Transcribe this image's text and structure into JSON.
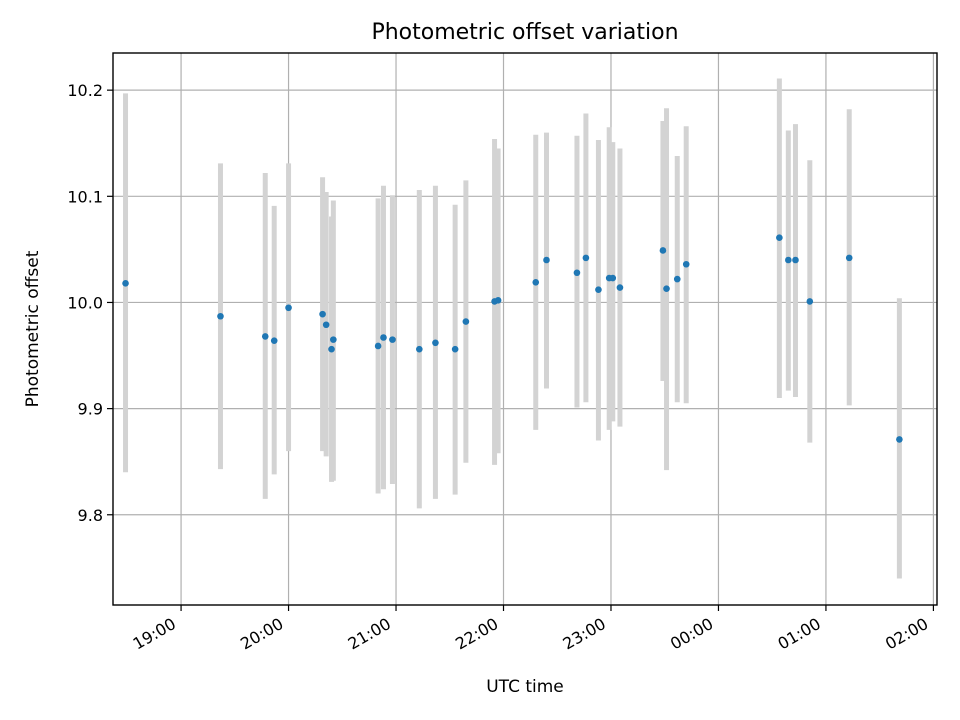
{
  "chart_data": {
    "type": "scatter",
    "title": "Photometric offset variation",
    "xlabel": "UTC time",
    "ylabel": "Photometric offset",
    "x_axis_kind": "time",
    "xlim": [
      "2000-01-01T18:22",
      "2000-01-02T02:02"
    ],
    "ylim": [
      9.715,
      10.235
    ],
    "x_ticks": [
      {
        "time": "2000-01-01T19:00",
        "label": "19:00"
      },
      {
        "time": "2000-01-01T20:00",
        "label": "20:00"
      },
      {
        "time": "2000-01-01T21:00",
        "label": "21:00"
      },
      {
        "time": "2000-01-01T22:00",
        "label": "22:00"
      },
      {
        "time": "2000-01-01T23:00",
        "label": "23:00"
      },
      {
        "time": "2000-01-02T00:00",
        "label": "00:00"
      },
      {
        "time": "2000-01-02T01:00",
        "label": "01:00"
      },
      {
        "time": "2000-01-02T02:00",
        "label": "02:00"
      }
    ],
    "y_ticks": [
      {
        "value": 9.8,
        "label": "9.8"
      },
      {
        "value": 9.9,
        "label": "9.9"
      },
      {
        "value": 10.0,
        "label": "10.0"
      },
      {
        "value": 10.1,
        "label": "10.1"
      },
      {
        "value": 10.2,
        "label": "10.2"
      }
    ],
    "grid": true,
    "marker_color": "#1f77b4",
    "errorbar_color": "#d3d3d3",
    "points": [
      {
        "time": "2000-01-01T18:29",
        "y": 10.018,
        "err_low": 9.84,
        "err_high": 10.197
      },
      {
        "time": "2000-01-01T19:22",
        "y": 9.987,
        "err_low": 9.843,
        "err_high": 10.131
      },
      {
        "time": "2000-01-01T19:47",
        "y": 9.968,
        "err_low": 9.815,
        "err_high": 10.122
      },
      {
        "time": "2000-01-01T19:52",
        "y": 9.964,
        "err_low": 9.838,
        "err_high": 10.091
      },
      {
        "time": "2000-01-01T20:00",
        "y": 9.995,
        "err_low": 9.86,
        "err_high": 10.131
      },
      {
        "time": "2000-01-01T20:19",
        "y": 9.989,
        "err_low": 9.86,
        "err_high": 10.118
      },
      {
        "time": "2000-01-01T20:21",
        "y": 9.979,
        "err_low": 9.855,
        "err_high": 10.104
      },
      {
        "time": "2000-01-01T20:24",
        "y": 9.956,
        "err_low": 9.831,
        "err_high": 10.081
      },
      {
        "time": "2000-01-01T20:25",
        "y": 9.965,
        "err_low": 9.832,
        "err_high": 10.096
      },
      {
        "time": "2000-01-01T20:50",
        "y": 9.959,
        "err_low": 9.82,
        "err_high": 10.098
      },
      {
        "time": "2000-01-01T20:53",
        "y": 9.967,
        "err_low": 9.824,
        "err_high": 10.11
      },
      {
        "time": "2000-01-01T20:58",
        "y": 9.965,
        "err_low": 9.829,
        "err_high": 10.101
      },
      {
        "time": "2000-01-01T21:13",
        "y": 9.956,
        "err_low": 9.806,
        "err_high": 10.106
      },
      {
        "time": "2000-01-01T21:22",
        "y": 9.962,
        "err_low": 9.815,
        "err_high": 10.11
      },
      {
        "time": "2000-01-01T21:33",
        "y": 9.956,
        "err_low": 9.819,
        "err_high": 10.092
      },
      {
        "time": "2000-01-01T21:39",
        "y": 9.982,
        "err_low": 9.849,
        "err_high": 10.115
      },
      {
        "time": "2000-01-01T21:55",
        "y": 10.001,
        "err_low": 9.847,
        "err_high": 10.154
      },
      {
        "time": "2000-01-01T21:57",
        "y": 10.002,
        "err_low": 9.858,
        "err_high": 10.145
      },
      {
        "time": "2000-01-01T22:18",
        "y": 10.019,
        "err_low": 9.88,
        "err_high": 10.158
      },
      {
        "time": "2000-01-01T22:24",
        "y": 10.04,
        "err_low": 9.919,
        "err_high": 10.16
      },
      {
        "time": "2000-01-01T22:41",
        "y": 10.028,
        "err_low": 9.901,
        "err_high": 10.157
      },
      {
        "time": "2000-01-01T22:46",
        "y": 10.042,
        "err_low": 9.906,
        "err_high": 10.178
      },
      {
        "time": "2000-01-01T22:53",
        "y": 10.012,
        "err_low": 9.87,
        "err_high": 10.153
      },
      {
        "time": "2000-01-01T22:59",
        "y": 10.023,
        "err_low": 9.88,
        "err_high": 10.165
      },
      {
        "time": "2000-01-01T23:01",
        "y": 10.023,
        "err_low": 9.888,
        "err_high": 10.151
      },
      {
        "time": "2000-01-01T23:05",
        "y": 10.014,
        "err_low": 9.883,
        "err_high": 10.145
      },
      {
        "time": "2000-01-01T23:29",
        "y": 10.049,
        "err_low": 9.926,
        "err_high": 10.171
      },
      {
        "time": "2000-01-01T23:31",
        "y": 10.013,
        "err_low": 9.842,
        "err_high": 10.183
      },
      {
        "time": "2000-01-01T23:37",
        "y": 10.022,
        "err_low": 9.906,
        "err_high": 10.138
      },
      {
        "time": "2000-01-01T23:42",
        "y": 10.036,
        "err_low": 9.905,
        "err_high": 10.166
      },
      {
        "time": "2000-01-02T00:34",
        "y": 10.061,
        "err_low": 9.91,
        "err_high": 10.211
      },
      {
        "time": "2000-01-02T00:39",
        "y": 10.04,
        "err_low": 9.917,
        "err_high": 10.162
      },
      {
        "time": "2000-01-02T00:43",
        "y": 10.04,
        "err_low": 9.911,
        "err_high": 10.168
      },
      {
        "time": "2000-01-02T00:51",
        "y": 10.001,
        "err_low": 9.868,
        "err_high": 10.134
      },
      {
        "time": "2000-01-02T01:13",
        "y": 10.042,
        "err_low": 9.903,
        "err_high": 10.182
      },
      {
        "time": "2000-01-02T01:41",
        "y": 9.871,
        "err_low": 9.74,
        "err_high": 10.004
      }
    ]
  }
}
